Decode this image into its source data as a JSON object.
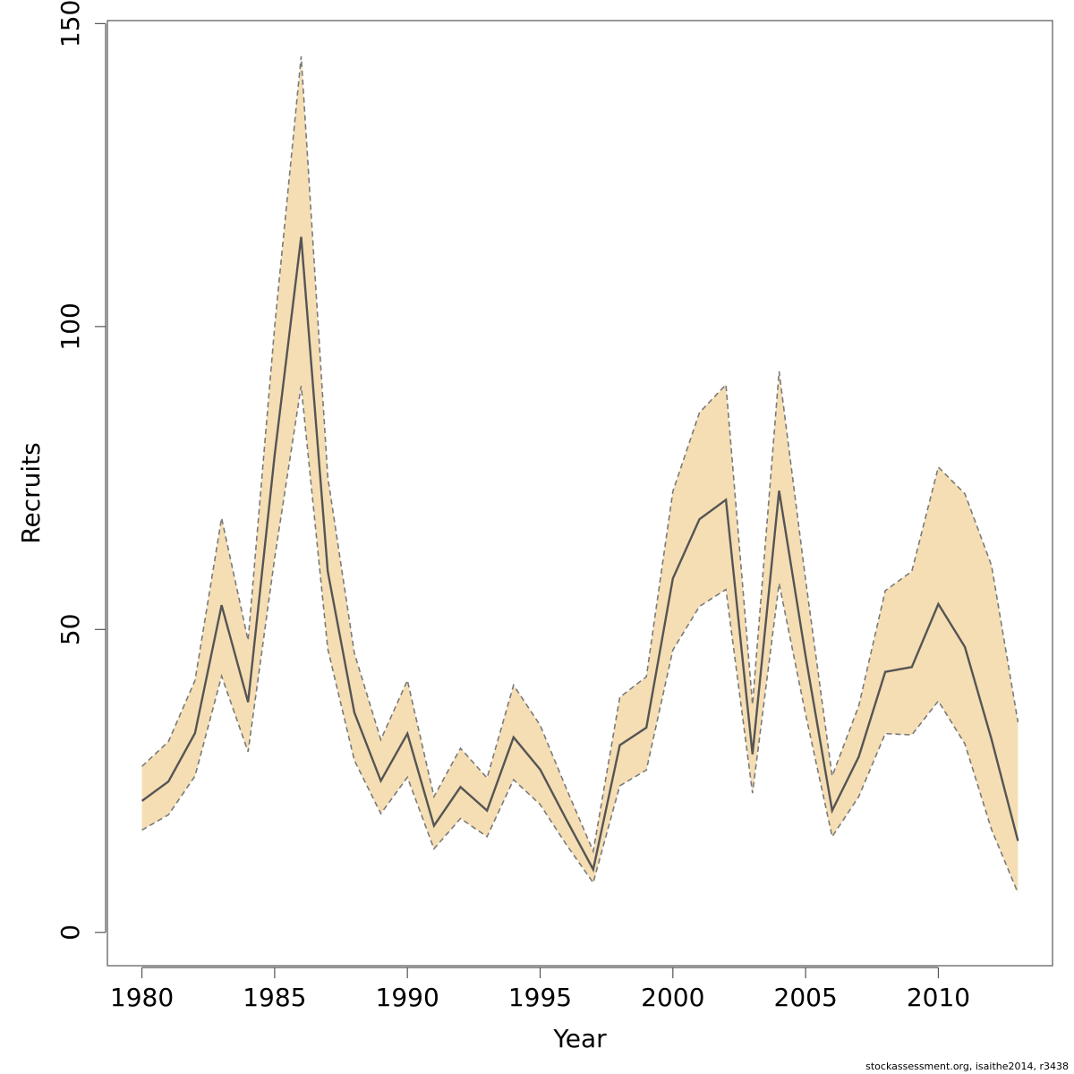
{
  "chart_data": {
    "type": "line",
    "title": "",
    "xlabel": "Year",
    "ylabel": "Recruits",
    "xlim": [
      1978.7,
      2014.3
    ],
    "ylim": [
      -5.5,
      150.5
    ],
    "xticks": [
      1980,
      1985,
      1990,
      1995,
      2000,
      2005,
      2010
    ],
    "yticks": [
      0,
      50,
      100,
      150
    ],
    "grid": false,
    "x": [
      1980,
      1981,
      1982,
      1983,
      1984,
      1985,
      1986,
      1987,
      1988,
      1989,
      1990,
      1991,
      1992,
      1993,
      1994,
      1995,
      1996,
      1997,
      1998,
      1999,
      2000,
      2001,
      2002,
      2003,
      2004,
      2005,
      2006,
      2007,
      2008,
      2009,
      2010,
      2011,
      2012,
      2013
    ],
    "series": [
      {
        "role": "estimate",
        "style": "solid",
        "values": [
          21.7,
          24.9,
          32.9,
          54.0,
          38.0,
          78.8,
          114.8,
          59.6,
          36.3,
          25.0,
          32.8,
          17.6,
          24.0,
          20.1,
          32.2,
          26.9,
          18.5,
          10.4,
          30.9,
          33.8,
          58.4,
          68.2,
          71.4,
          29.4,
          72.9,
          45.6,
          20.1,
          29.0,
          43.0,
          43.8,
          54.2,
          47.1,
          31.9,
          15.1
        ]
      },
      {
        "role": "upper",
        "style": "dashed",
        "values": [
          27.4,
          31.5,
          41.6,
          68.4,
          48.2,
          100.0,
          144.6,
          75.2,
          46.1,
          31.8,
          41.6,
          22.4,
          30.4,
          25.5,
          40.8,
          34.2,
          23.6,
          13.4,
          38.8,
          42.2,
          72.8,
          85.8,
          90.4,
          37.6,
          92.6,
          58.2,
          25.8,
          37.4,
          56.4,
          59.6,
          76.8,
          72.4,
          60.6,
          34.7
        ]
      },
      {
        "role": "lower",
        "style": "dashed",
        "values": [
          16.9,
          19.4,
          25.8,
          42.3,
          29.8,
          61.8,
          90.2,
          46.8,
          28.4,
          19.6,
          25.6,
          13.8,
          18.8,
          15.8,
          25.2,
          21.1,
          14.4,
          8.2,
          24.2,
          26.8,
          46.6,
          53.8,
          56.6,
          23.0,
          57.6,
          36.0,
          15.8,
          22.4,
          32.8,
          32.6,
          38.2,
          31.1,
          17.0,
          6.5
        ]
      }
    ],
    "colors": {
      "band": "#f5deb3",
      "line": "#555555",
      "dash": "#7a7a7a",
      "frame": "#555555"
    }
  },
  "footnote": "stockassessment.org, isaithe2014, r3438"
}
